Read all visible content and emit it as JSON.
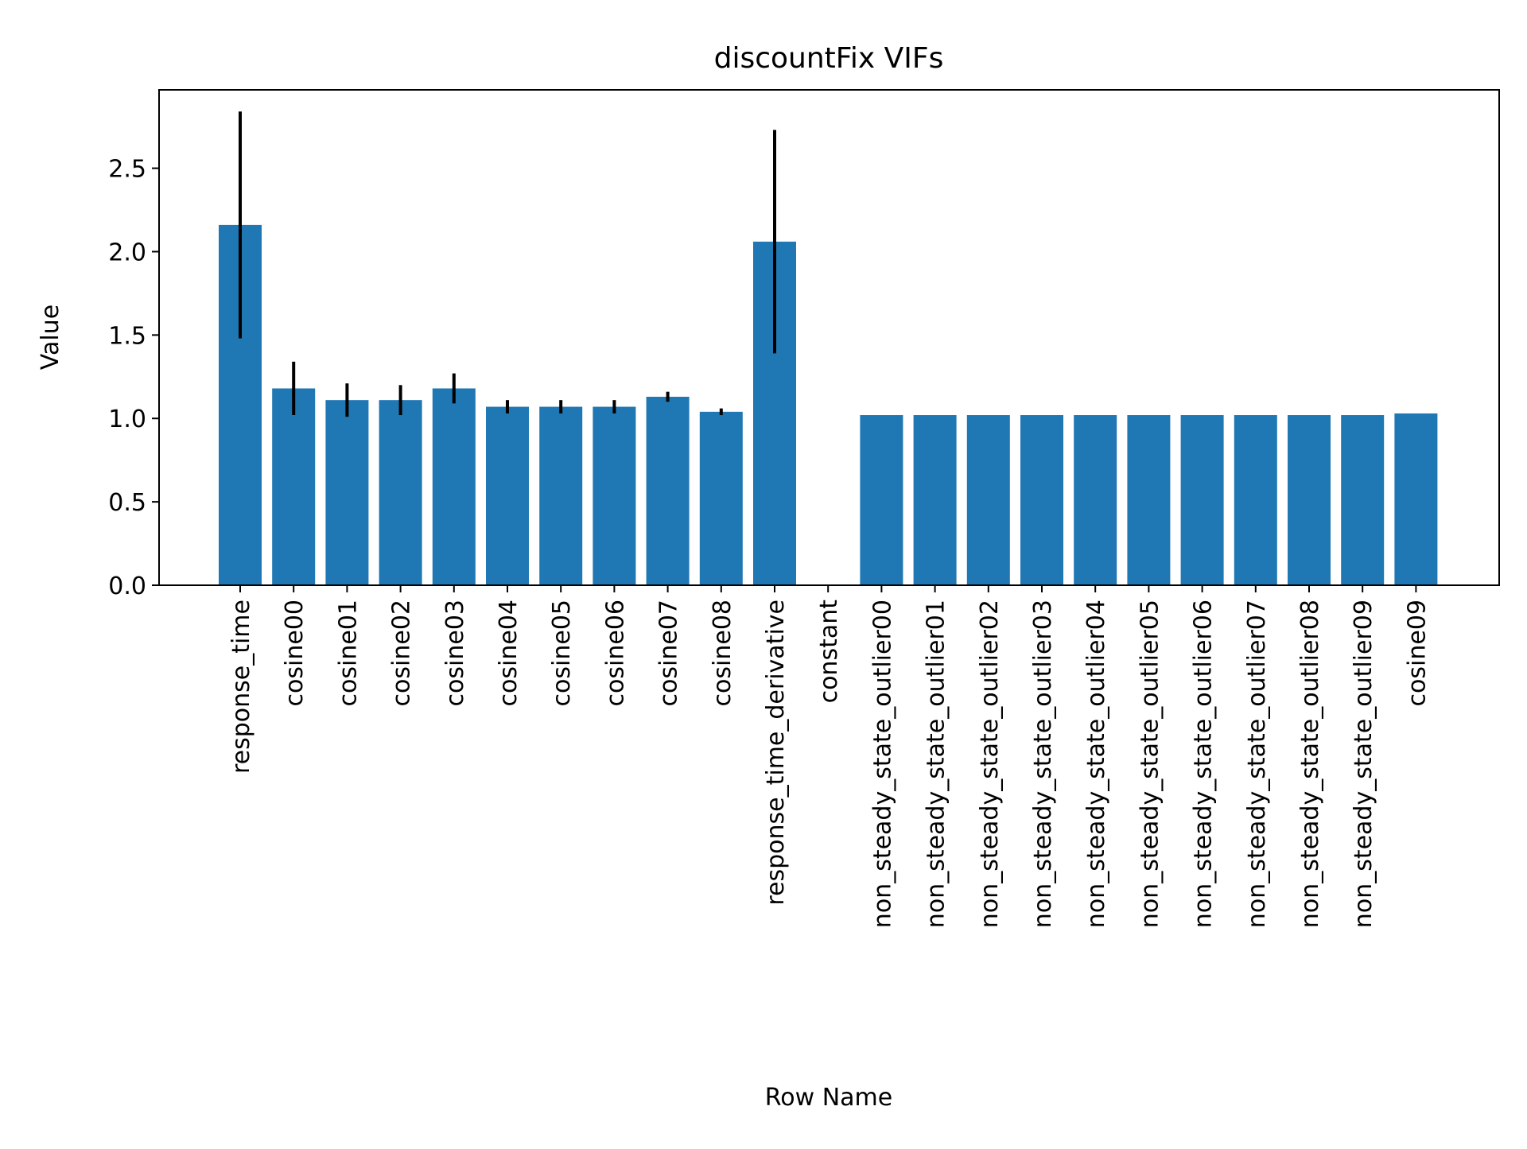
{
  "chart_data": {
    "type": "bar",
    "title": "discountFix VIFs",
    "xlabel": "Row Name",
    "ylabel": "Value",
    "ylim": [
      0,
      2.97
    ],
    "yticks": [
      "0.0",
      "0.5",
      "1.0",
      "1.5",
      "2.0",
      "2.5"
    ],
    "ytick_values": [
      0,
      0.5,
      1.0,
      1.5,
      2.0,
      2.5
    ],
    "grid": false,
    "bar_color": "#1f77b4",
    "error_color": "#000000",
    "categories": [
      "response_time",
      "cosine00",
      "cosine01",
      "cosine02",
      "cosine03",
      "cosine04",
      "cosine05",
      "cosine06",
      "cosine07",
      "cosine08",
      "response_time_derivative",
      "constant",
      "non_steady_state_outlier00",
      "non_steady_state_outlier01",
      "non_steady_state_outlier02",
      "non_steady_state_outlier03",
      "non_steady_state_outlier04",
      "non_steady_state_outlier05",
      "non_steady_state_outlier06",
      "non_steady_state_outlier07",
      "non_steady_state_outlier08",
      "non_steady_state_outlier09",
      "cosine09"
    ],
    "values": [
      2.16,
      1.18,
      1.11,
      1.11,
      1.18,
      1.07,
      1.07,
      1.07,
      1.13,
      1.04,
      2.06,
      0,
      1.02,
      1.02,
      1.02,
      1.02,
      1.02,
      1.02,
      1.02,
      1.02,
      1.02,
      1.02,
      1.03
    ],
    "errors": [
      0.68,
      0.16,
      0.1,
      0.09,
      0.09,
      0.04,
      0.04,
      0.04,
      0.03,
      0.02,
      0.67,
      0,
      0,
      0,
      0,
      0,
      0,
      0,
      0,
      0,
      0,
      0,
      0
    ]
  }
}
